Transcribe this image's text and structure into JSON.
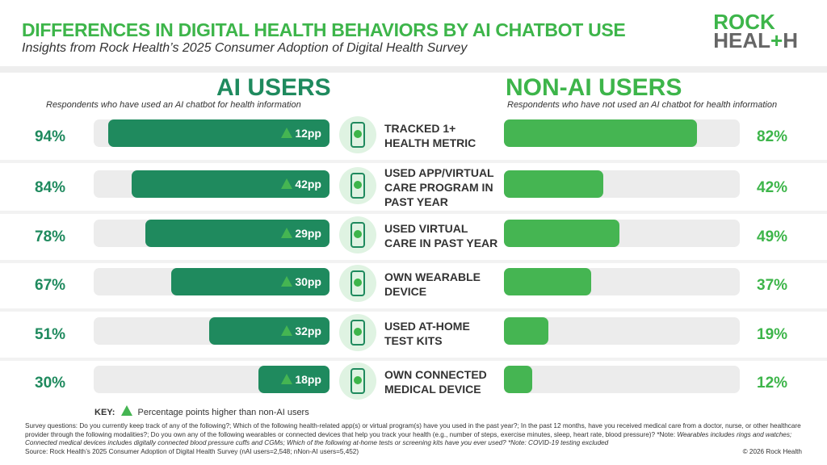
{
  "header": {
    "title": "DIFFERENCES IN DIGITAL HEALTH BEHAVIORS BY AI CHATBOT USE",
    "subtitle": "Insights from Rock Health’s 2025 Consumer Adoption of Digital Health Survey",
    "logo_line1": "ROCK",
    "logo_line2": "HEAL+H"
  },
  "chart_data": {
    "type": "bar",
    "title": "DIFFERENCES IN DIGITAL HEALTH BEHAVIORS BY AI CHATBOT USE",
    "categories": [
      "TRACKED 1+ HEALTH METRIC",
      "USED APP/VIRTUAL CARE PROGRAM IN PAST YEAR",
      "USED VIRTUAL CARE IN PAST YEAR",
      "OWN WEARABLE DEVICE",
      "USED AT-HOME TEST KITS",
      "OWN CONNECTED MEDICAL DEVICE"
    ],
    "series": [
      {
        "name": "AI USERS",
        "description": "Respondents who have used an AI chatbot for health information",
        "values": [
          94,
          84,
          78,
          67,
          51,
          30
        ],
        "labels": [
          "94%",
          "84%",
          "78%",
          "67%",
          "51%",
          "30%"
        ],
        "color": "#1f8a5e"
      },
      {
        "name": "NON-AI USERS",
        "description": "Respondents who have not used an AI chatbot for health information",
        "values": [
          82,
          42,
          49,
          37,
          19,
          12
        ],
        "labels": [
          "82%",
          "42%",
          "49%",
          "37%",
          "19%",
          "12%"
        ],
        "color": "#45b552"
      }
    ],
    "differences": [
      "12pp",
      "42pp",
      "29pp",
      "30pp",
      "32pp",
      "18pp"
    ],
    "ylim": [
      0,
      100
    ]
  },
  "rows": [
    {
      "label": [
        "TRACKED 1+",
        "HEALTH METRIC"
      ],
      "icon": "phone-heart-icon"
    },
    {
      "label": [
        "USED APP/VIRTUAL",
        "CARE PROGRAM IN",
        "PAST YEAR"
      ],
      "icon": "phone-app-icon"
    },
    {
      "label": [
        "USED VIRTUAL",
        "CARE IN PAST YEAR"
      ],
      "icon": "virtual-doctor-icon"
    },
    {
      "label": [
        "OWN WEARABLE",
        "DEVICE"
      ],
      "icon": "smartwatch-icon"
    },
    {
      "label": [
        "USED AT-HOME",
        "TEST KITS"
      ],
      "icon": "test-kit-icon"
    },
    {
      "label": [
        "OWN CONNECTED",
        "MEDICAL DEVICE"
      ],
      "icon": "blood-pressure-monitor-icon"
    }
  ],
  "key": {
    "title": "KEY:",
    "text": "Percentage points higher than non-AI users"
  },
  "footer": {
    "questions": "Survey questions: Do you currently keep track of any of the following?; Which of the following health-related app(s) or virtual program(s) have you used in the past year?; In the past 12 months, have you received medical care from a doctor, nurse, or other healthcare provider through the following modalities?; Do you own any of the following wearables or connected devices that help you track your health (e.g., number of steps, exercise minutes, sleep, heart rate, blood pressure)? *Note:",
    "notes": "Wearables includes rings and watches; Connected medical devices includes digitally connected blood pressure cuffs and CGMs; Which of the following at-home tests or screening kits have you ever used? *Note: COVID-19 testing excluded",
    "source": "Source: Rock Health’s 2025 Consumer Adoption of Digital Health Survey (nAI users=2,548; nNon-AI users=5,452)",
    "copyright": "© 2026 Rock Health"
  }
}
